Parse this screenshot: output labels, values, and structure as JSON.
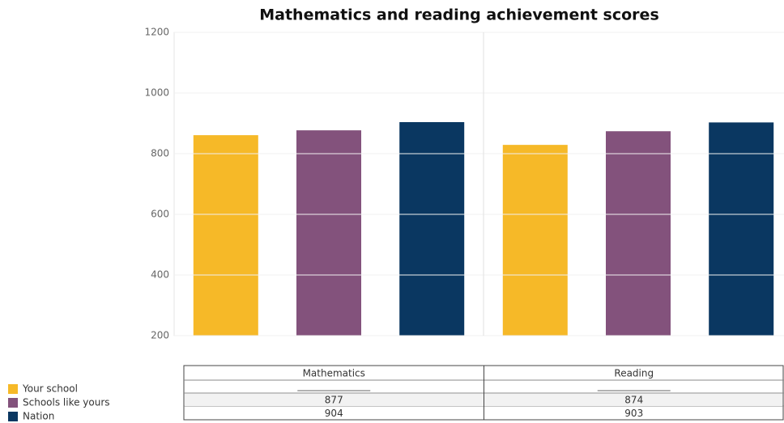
{
  "chart_data": {
    "type": "bar",
    "title": "Mathematics and reading achievement scores",
    "categories": [
      "Mathematics",
      "Reading"
    ],
    "series": [
      {
        "name": "Your school",
        "color": "#f6b928",
        "values": [
          861,
          829
        ]
      },
      {
        "name": "Schools like yours",
        "color": "#83527c",
        "values": [
          877,
          874
        ]
      },
      {
        "name": "Nation",
        "color": "#0a3761",
        "values": [
          904,
          903
        ]
      }
    ],
    "ylim": [
      200,
      1200
    ],
    "yticks": [
      200,
      400,
      600,
      800,
      1000,
      1200
    ],
    "grid": true
  }
}
